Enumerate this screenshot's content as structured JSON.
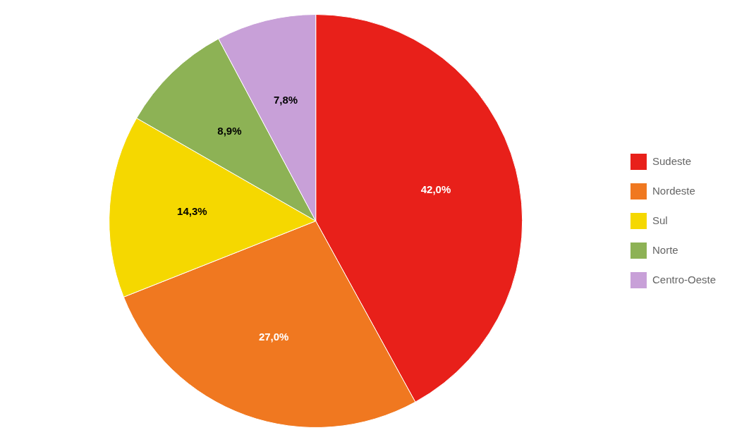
{
  "chart_data": {
    "type": "pie",
    "categories": [
      "Sudeste",
      "Nordeste",
      "Sul",
      "Norte",
      "Centro-Oeste"
    ],
    "values": [
      42.0,
      27.0,
      14.3,
      8.9,
      7.8
    ],
    "value_labels": [
      "42,0%",
      "27,0%",
      "14,3%",
      "8,9%",
      "7,8%"
    ],
    "colors": [
      "#E8201A",
      "#F07820",
      "#F5D800",
      "#8DB255",
      "#C8A0D8"
    ],
    "data_labels": true,
    "legend": "right"
  }
}
